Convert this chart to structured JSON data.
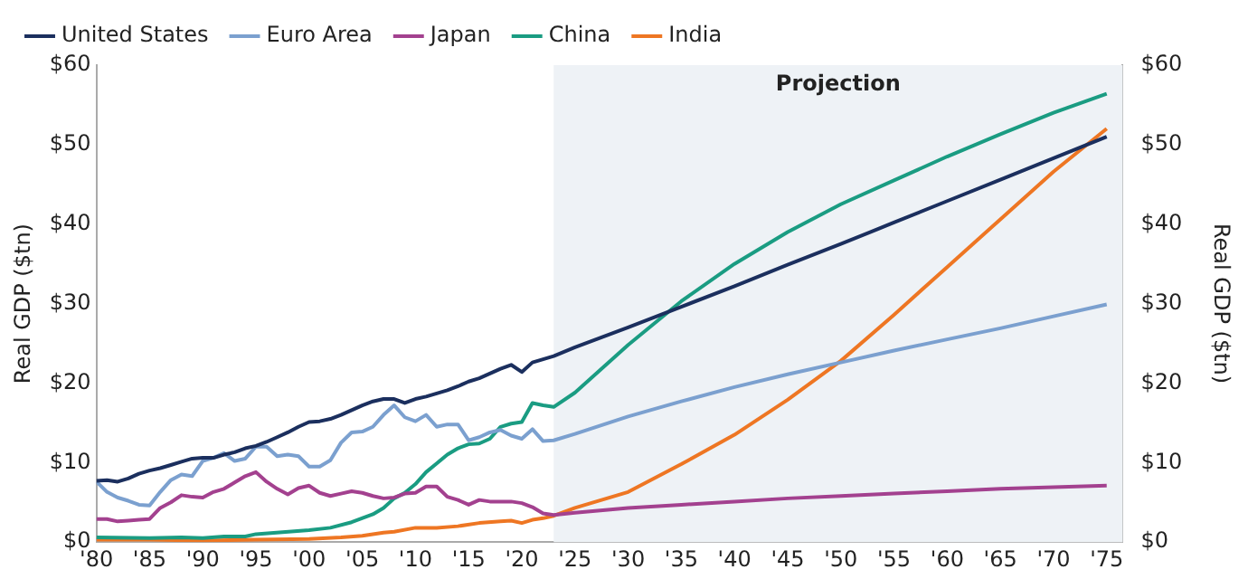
{
  "chart_data": {
    "type": "line",
    "ylabel": "Real GDP ($tn)",
    "y2label": "Real GDP ($tn)",
    "xlim": [
      1980,
      2076.5
    ],
    "xticks": [
      {
        "value": 1980,
        "label": "'80"
      },
      {
        "value": 1985,
        "label": "'85"
      },
      {
        "value": 1990,
        "label": "'90"
      },
      {
        "value": 1995,
        "label": "'95"
      },
      {
        "value": 2000,
        "label": "'00"
      },
      {
        "value": 2005,
        "label": "'05"
      },
      {
        "value": 2010,
        "label": "'10"
      },
      {
        "value": 2015,
        "label": "'15"
      },
      {
        "value": 2020,
        "label": "'20"
      },
      {
        "value": 2025,
        "label": "'25"
      },
      {
        "value": 2030,
        "label": "'30"
      },
      {
        "value": 2035,
        "label": "'35"
      },
      {
        "value": 2040,
        "label": "'40"
      },
      {
        "value": 2045,
        "label": "'45"
      },
      {
        "value": 2050,
        "label": "'50"
      },
      {
        "value": 2055,
        "label": "'55"
      },
      {
        "value": 2060,
        "label": "'60"
      },
      {
        "value": 2065,
        "label": "'65"
      },
      {
        "value": 2070,
        "label": "'70"
      },
      {
        "value": 2075,
        "label": "'75"
      }
    ],
    "ylim": [
      0,
      60
    ],
    "yticks": [
      {
        "value": 0,
        "label": "$0"
      },
      {
        "value": 10,
        "label": "$10"
      },
      {
        "value": 20,
        "label": "$20"
      },
      {
        "value": 30,
        "label": "$30"
      },
      {
        "value": 40,
        "label": "$40"
      },
      {
        "value": 50,
        "label": "$50"
      },
      {
        "value": 60,
        "label": "$60"
      }
    ],
    "y2lim": [
      0,
      60
    ],
    "y2ticks": [
      {
        "value": 0,
        "label": "$0"
      },
      {
        "value": 10,
        "label": "$10"
      },
      {
        "value": 20,
        "label": "$20"
      },
      {
        "value": 30,
        "label": "$30"
      },
      {
        "value": 40,
        "label": "$40"
      },
      {
        "value": 50,
        "label": "$50"
      },
      {
        "value": 60,
        "label": "$60"
      }
    ],
    "bands": [
      {
        "axis": "x",
        "from": 2023,
        "to": 2076.5,
        "label": "Projection",
        "color": "#eef2f6"
      }
    ],
    "legend": "top left",
    "grid": false,
    "series": [
      {
        "name": "United States",
        "color": "#1b2f5e",
        "x": [
          1980,
          1981,
          1982,
          1983,
          1984,
          1985,
          1986,
          1987,
          1988,
          1989,
          1990,
          1991,
          1992,
          1993,
          1994,
          1995,
          1996,
          1997,
          1998,
          1999,
          2000,
          2001,
          2002,
          2003,
          2004,
          2005,
          2006,
          2007,
          2008,
          2009,
          2010,
          2011,
          2012,
          2013,
          2014,
          2015,
          2016,
          2017,
          2018,
          2019,
          2020,
          2021,
          2022,
          2023,
          2025,
          2030,
          2035,
          2040,
          2045,
          2050,
          2055,
          2060,
          2065,
          2070,
          2075
        ],
        "values": [
          7.7,
          7.8,
          7.6,
          8.0,
          8.6,
          9.0,
          9.3,
          9.7,
          10.1,
          10.5,
          10.6,
          10.6,
          11.0,
          11.3,
          11.8,
          12.1,
          12.6,
          13.2,
          13.8,
          14.5,
          15.1,
          15.2,
          15.5,
          16.0,
          16.6,
          17.2,
          17.7,
          18.0,
          18.0,
          17.5,
          18.0,
          18.3,
          18.7,
          19.1,
          19.6,
          20.2,
          20.6,
          21.2,
          21.8,
          22.3,
          21.4,
          22.6,
          23.0,
          23.4,
          24.5,
          27.0,
          29.6,
          32.2,
          34.9,
          37.5,
          40.2,
          42.9,
          45.6,
          48.3,
          51.0
        ]
      },
      {
        "name": "Euro Area",
        "color": "#7ba0cf",
        "x": [
          1980,
          1981,
          1982,
          1983,
          1984,
          1985,
          1986,
          1987,
          1988,
          1989,
          1990,
          1991,
          1992,
          1993,
          1994,
          1995,
          1996,
          1997,
          1998,
          1999,
          2000,
          2001,
          2002,
          2003,
          2004,
          2005,
          2006,
          2007,
          2008,
          2009,
          2010,
          2011,
          2012,
          2013,
          2014,
          2015,
          2016,
          2017,
          2018,
          2019,
          2020,
          2021,
          2022,
          2023,
          2025,
          2030,
          2035,
          2040,
          2045,
          2050,
          2055,
          2060,
          2065,
          2070,
          2075
        ],
        "values": [
          7.6,
          6.3,
          5.6,
          5.2,
          4.7,
          4.6,
          6.3,
          7.8,
          8.5,
          8.3,
          10.2,
          10.6,
          11.2,
          10.2,
          10.5,
          12.0,
          12.0,
          10.8,
          11.0,
          10.8,
          9.5,
          9.5,
          10.3,
          12.5,
          13.8,
          13.9,
          14.5,
          16.0,
          17.2,
          15.7,
          15.2,
          16.0,
          14.5,
          14.8,
          14.8,
          12.8,
          13.2,
          13.8,
          14.1,
          13.4,
          13.0,
          14.2,
          12.7,
          12.8,
          13.6,
          15.8,
          17.7,
          19.5,
          21.1,
          22.6,
          24.1,
          25.5,
          26.9,
          28.4,
          29.9
        ]
      },
      {
        "name": "Japan",
        "color": "#a3418f",
        "x": [
          1980,
          1981,
          1982,
          1983,
          1984,
          1985,
          1986,
          1987,
          1988,
          1989,
          1990,
          1991,
          1992,
          1993,
          1994,
          1995,
          1996,
          1997,
          1998,
          1999,
          2000,
          2001,
          2002,
          2003,
          2004,
          2005,
          2006,
          2007,
          2008,
          2009,
          2010,
          2011,
          2012,
          2013,
          2014,
          2015,
          2016,
          2017,
          2018,
          2019,
          2020,
          2021,
          2022,
          2023,
          2025,
          2030,
          2035,
          2040,
          2045,
          2050,
          2055,
          2060,
          2065,
          2070,
          2075
        ],
        "values": [
          2.9,
          2.9,
          2.6,
          2.7,
          2.8,
          2.9,
          4.3,
          5.0,
          5.9,
          5.7,
          5.6,
          6.3,
          6.7,
          7.5,
          8.3,
          8.8,
          7.6,
          6.7,
          6.0,
          6.8,
          7.1,
          6.2,
          5.8,
          6.1,
          6.4,
          6.2,
          5.8,
          5.5,
          5.6,
          6.1,
          6.2,
          7.0,
          7.0,
          5.7,
          5.3,
          4.7,
          5.3,
          5.1,
          5.1,
          5.1,
          4.9,
          4.4,
          3.6,
          3.4,
          3.7,
          4.3,
          4.7,
          5.1,
          5.5,
          5.8,
          6.1,
          6.4,
          6.7,
          6.9,
          7.1
        ]
      },
      {
        "name": "China",
        "color": "#1a9c82",
        "x": [
          1980,
          1985,
          1988,
          1990,
          1992,
          1994,
          1995,
          2000,
          2002,
          2004,
          2006,
          2007,
          2008,
          2009,
          2010,
          2011,
          2012,
          2013,
          2014,
          2015,
          2016,
          2017,
          2018,
          2019,
          2020,
          2021,
          2022,
          2023,
          2025,
          2030,
          2035,
          2040,
          2045,
          2050,
          2055,
          2060,
          2065,
          2070,
          2075
        ],
        "values": [
          0.6,
          0.5,
          0.6,
          0.5,
          0.7,
          0.7,
          1.0,
          1.5,
          1.8,
          2.5,
          3.5,
          4.3,
          5.5,
          6.2,
          7.3,
          8.8,
          9.9,
          11.0,
          11.8,
          12.3,
          12.4,
          13.0,
          14.5,
          14.9,
          15.1,
          17.5,
          17.2,
          17.0,
          18.8,
          24.8,
          30.3,
          35.0,
          39.0,
          42.5,
          45.5,
          48.5,
          51.3,
          54.0,
          56.4
        ]
      },
      {
        "name": "India",
        "color": "#ee7623",
        "x": [
          1980,
          1985,
          1990,
          1995,
          2000,
          2003,
          2005,
          2007,
          2008,
          2010,
          2012,
          2014,
          2016,
          2018,
          2019,
          2020,
          2021,
          2022,
          2023,
          2025,
          2030,
          2035,
          2040,
          2045,
          2050,
          2055,
          2060,
          2065,
          2070,
          2075
        ],
        "values": [
          0.3,
          0.3,
          0.2,
          0.3,
          0.4,
          0.6,
          0.8,
          1.2,
          1.3,
          1.8,
          1.8,
          2.0,
          2.4,
          2.6,
          2.7,
          2.4,
          2.8,
          3.0,
          3.3,
          4.3,
          6.3,
          9.8,
          13.5,
          17.9,
          22.8,
          28.6,
          34.6,
          40.6,
          46.6,
          52.0
        ]
      }
    ]
  }
}
